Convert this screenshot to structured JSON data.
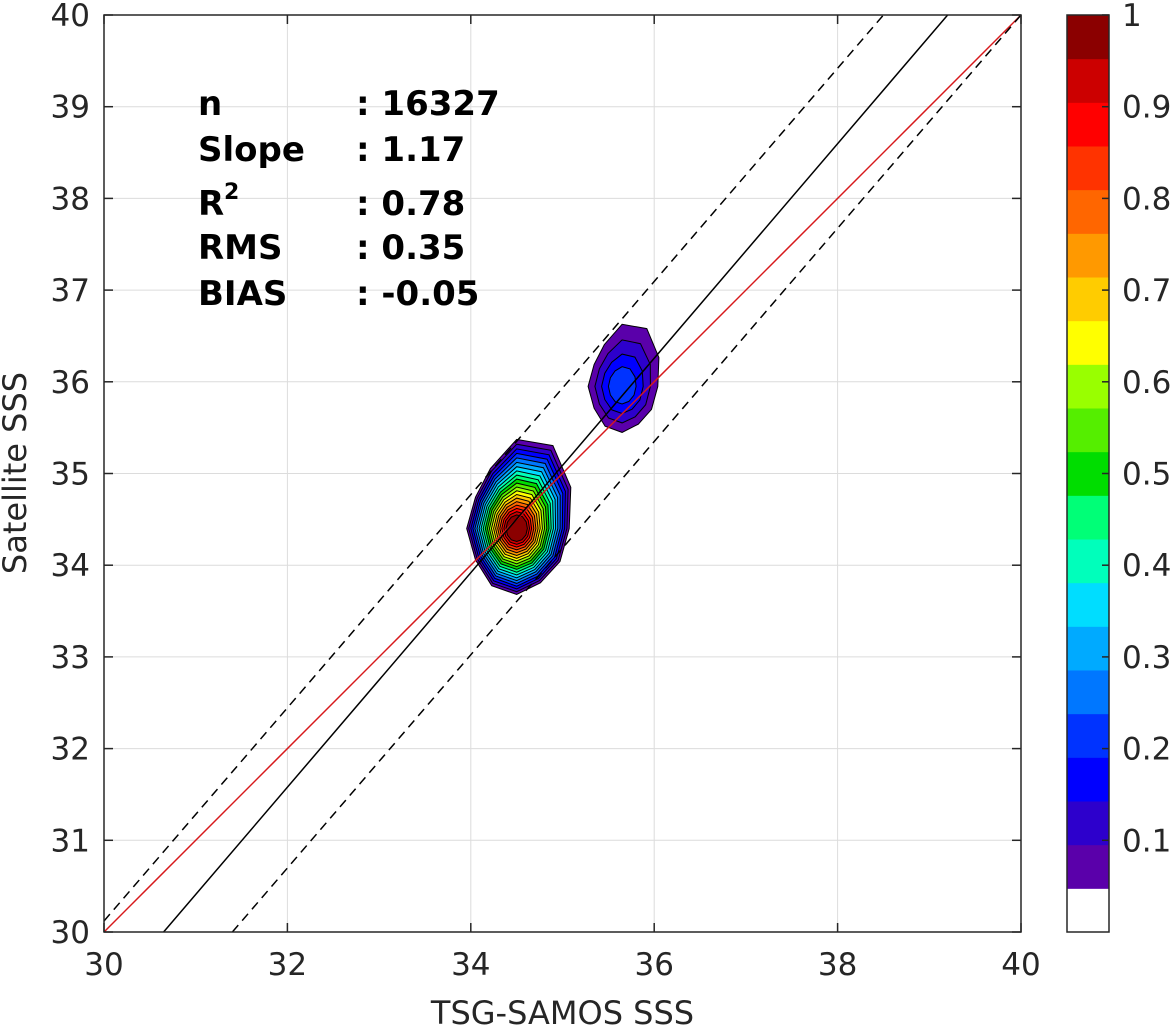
{
  "chart_data": {
    "type": "contour-scatter",
    "xlabel": "TSG-SAMOS SSS",
    "ylabel": "Satellite SSS",
    "xlim": [
      30,
      40
    ],
    "ylim": [
      30,
      40
    ],
    "xticks": [
      "30",
      "32",
      "34",
      "36",
      "38",
      "40"
    ],
    "yticks": [
      "30",
      "31",
      "32",
      "33",
      "34",
      "35",
      "36",
      "37",
      "38",
      "39",
      "40"
    ],
    "grid": true,
    "stats": [
      {
        "label": "n",
        "value": ": 16327"
      },
      {
        "label": "Slope",
        "value": ": 1.17"
      },
      {
        "label": "R",
        "sup": "2",
        "value": ": 0.78"
      },
      {
        "label": "RMS",
        "value": ": 0.35"
      },
      {
        "label": "BIAS",
        "value": ": -0.05"
      }
    ],
    "reference_lines": [
      {
        "kind": "one-to-one",
        "color": "#d7191c",
        "x": [
          30,
          40
        ],
        "y": [
          30,
          40
        ]
      },
      {
        "kind": "fit",
        "color": "#000000",
        "style": "solid",
        "x": [
          30.65,
          39.2
        ],
        "y": [
          30,
          40
        ]
      },
      {
        "kind": "upper-bound",
        "color": "#000000",
        "style": "dashed",
        "x": [
          30,
          38.5
        ],
        "y": [
          30.12,
          40
        ]
      },
      {
        "kind": "lower-bound",
        "color": "#000000",
        "style": "dashed",
        "x": [
          31.4,
          40
        ],
        "y": [
          30,
          40
        ]
      }
    ],
    "density_clusters": [
      {
        "center": [
          34.5,
          34.4
        ],
        "peak": 1.0
      },
      {
        "center": [
          35.65,
          35.95
        ],
        "peak": 0.2
      }
    ],
    "colorbar": {
      "min": 0,
      "max": 1,
      "ticks": [
        "0.1",
        "0.2",
        "0.3",
        "0.4",
        "0.5",
        "0.6",
        "0.7",
        "0.8",
        "0.9",
        "1"
      ],
      "colors": [
        "#ffffff",
        "#5a00aa",
        "#2d00cc",
        "#0000ff",
        "#0033ff",
        "#0077ff",
        "#00aaff",
        "#00ddff",
        "#00ffbb",
        "#00ff77",
        "#00dd00",
        "#55ee00",
        "#99ff00",
        "#ffff00",
        "#ffcc00",
        "#ff9900",
        "#ff6600",
        "#ff3300",
        "#ff0000",
        "#cc0000",
        "#8b0000"
      ]
    }
  }
}
